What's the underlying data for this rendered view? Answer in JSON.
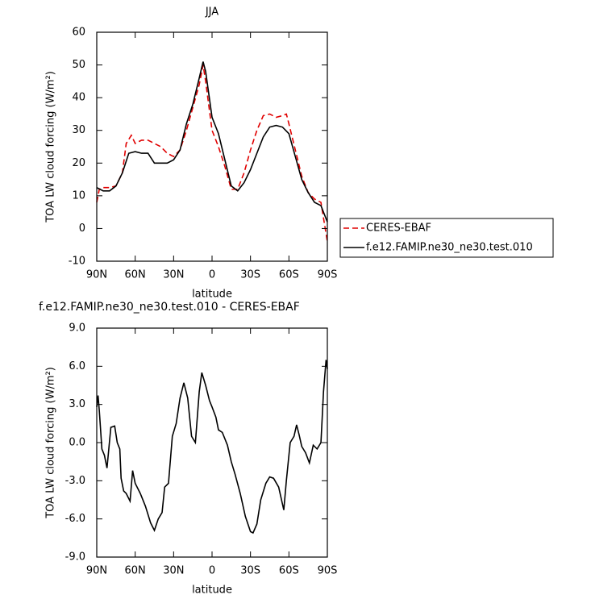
{
  "chart_data": [
    {
      "type": "line",
      "title": "JJA",
      "x_label": "latitude",
      "y_label": "TOA LW cloud forcing (W/m²)",
      "xlim": [
        90,
        -90
      ],
      "xticks": [
        {
          "value": 90,
          "label": "90N"
        },
        {
          "value": 60,
          "label": "60N"
        },
        {
          "value": 30,
          "label": "30N"
        },
        0,
        {
          "value": -30,
          "label": "30S"
        },
        {
          "value": -60,
          "label": "60S"
        },
        {
          "value": -90,
          "label": "90S"
        }
      ],
      "ylim": [
        -10,
        60
      ],
      "yticks": [
        -10,
        0,
        10,
        20,
        30,
        40,
        50,
        60
      ],
      "legend": "outside right",
      "series": [
        {
          "name": "CERES-EBAF",
          "color": "#e00000",
          "line_style": "dashed",
          "x": [
            90,
            88,
            85,
            80,
            75,
            70,
            67,
            63,
            60,
            55,
            50,
            45,
            40,
            35,
            30,
            25,
            20,
            15,
            10,
            7,
            5,
            0,
            -5,
            -10,
            -15,
            -20,
            -25,
            -30,
            -35,
            -40,
            -45,
            -50,
            -55,
            -58,
            -60,
            -65,
            -70,
            -75,
            -80,
            -85,
            -90
          ],
          "values": [
            8,
            12,
            12.5,
            12.5,
            13,
            17,
            26,
            28.5,
            26,
            27,
            27,
            26,
            25,
            23,
            22,
            24,
            30,
            37,
            44,
            50,
            45,
            30,
            25,
            19,
            12,
            12,
            17,
            24,
            30,
            34.5,
            35,
            34,
            34.5,
            35,
            32,
            24,
            16,
            11,
            9,
            8,
            -4
          ]
        },
        {
          "name": "f.e12.FAMIP.ne30_ne30.test.010",
          "color": "#000000",
          "line_style": "solid",
          "x": [
            90,
            85,
            80,
            75,
            70,
            65,
            60,
            55,
            50,
            45,
            40,
            35,
            30,
            25,
            20,
            15,
            10,
            7,
            5,
            0,
            -5,
            -10,
            -15,
            -20,
            -25,
            -30,
            -35,
            -40,
            -45,
            -50,
            -55,
            -60,
            -65,
            -70,
            -75,
            -80,
            -85,
            -90
          ],
          "values": [
            12.5,
            11.5,
            11.5,
            13,
            17,
            23,
            23.5,
            23,
            23,
            20,
            20,
            20,
            21,
            24,
            32,
            38,
            46,
            51,
            48,
            34,
            29,
            21,
            13,
            11.5,
            14,
            18,
            23,
            28,
            31,
            31.5,
            31,
            29,
            22,
            15,
            11,
            8,
            7,
            2
          ]
        }
      ]
    },
    {
      "type": "line",
      "title": "f.e12.FAMIP.ne30_ne30.test.010 - CERES-EBAF",
      "x_label": "latitude",
      "y_label": "TOA LW cloud forcing (W/m²)",
      "xlim": [
        90,
        -90
      ],
      "xticks": [
        {
          "value": 90,
          "label": "90N"
        },
        {
          "value": 60,
          "label": "60N"
        },
        {
          "value": 30,
          "label": "30N"
        },
        0,
        {
          "value": -30,
          "label": "30S"
        },
        {
          "value": -60,
          "label": "60S"
        },
        {
          "value": -90,
          "label": "90S"
        }
      ],
      "ylim": [
        -9,
        9
      ],
      "yticks": [
        {
          "value": -9,
          "label": "-9.0"
        },
        {
          "value": -6,
          "label": "-6.0"
        },
        {
          "value": -3,
          "label": "-3.0"
        },
        {
          "value": 0,
          "label": "0.0"
        },
        {
          "value": 3,
          "label": "3.0"
        },
        {
          "value": 6,
          "label": "6.0"
        },
        {
          "value": 9,
          "label": "9.0"
        }
      ],
      "series": [
        {
          "color": "#000000",
          "line_style": "solid",
          "x": [
            90,
            89,
            88,
            86,
            84,
            82,
            79,
            76,
            74,
            72,
            71,
            69,
            67,
            64,
            62,
            60,
            56,
            52,
            48,
            45,
            42,
            39,
            37,
            34,
            31,
            28,
            25,
            22,
            19,
            16,
            13,
            10,
            8,
            5,
            2,
            0,
            -3,
            -5,
            -8,
            -12,
            -15,
            -18,
            -22,
            -26,
            -30,
            -32,
            -35,
            -38,
            -42,
            -45,
            -48,
            -52,
            -56,
            -58,
            -61,
            -64,
            -66,
            -68,
            -70,
            -73,
            -76,
            -79,
            -82,
            -85,
            -87,
            -89,
            -90
          ],
          "values": [
            2.8,
            3.7,
            2.5,
            -0.5,
            -1,
            -2,
            1.2,
            1.3,
            0,
            -0.5,
            -2.8,
            -3.8,
            -4,
            -4.6,
            -2.2,
            -3.2,
            -4,
            -5,
            -6.3,
            -6.9,
            -6,
            -5.5,
            -3.5,
            -3.2,
            0.5,
            1.5,
            3.5,
            4.7,
            3.5,
            0.5,
            0,
            4,
            5.5,
            4.5,
            3.3,
            2.8,
            2,
            1,
            0.8,
            -0.2,
            -1.5,
            -2.5,
            -4,
            -5.8,
            -7,
            -7.1,
            -6.4,
            -4.5,
            -3.2,
            -2.7,
            -2.8,
            -3.5,
            -5.3,
            -3,
            0,
            0.5,
            1.4,
            0.6,
            -0.3,
            -0.8,
            -1.6,
            -0.2,
            -0.5,
            0,
            4,
            6.5,
            5.8
          ]
        }
      ]
    }
  ]
}
